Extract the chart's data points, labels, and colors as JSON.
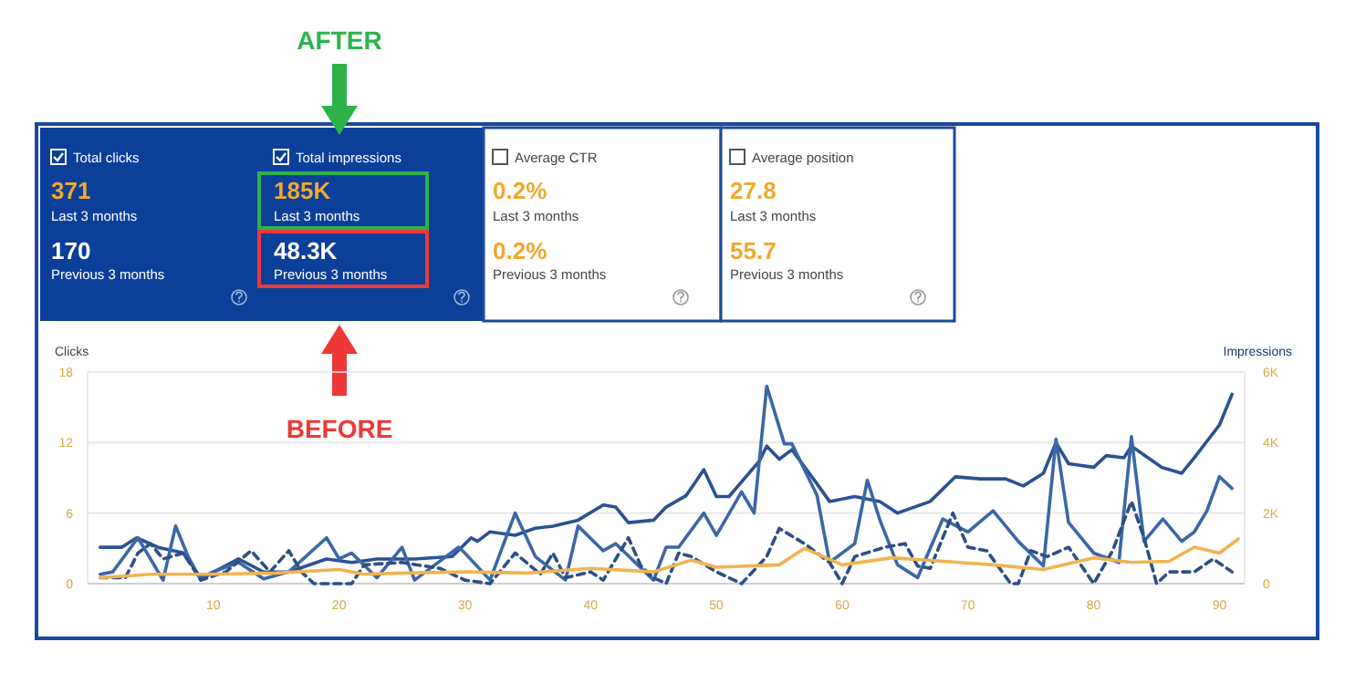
{
  "chart_data": [
    {
      "type": "other",
      "annotations": [
        "Total clicks",
        "371",
        "Last 3 months",
        "170",
        "Previous 3 months",
        "Total impressions",
        "185K",
        "Last 3 months",
        "48.3K",
        "Previous 3 months",
        "Average CTR",
        "0.2%",
        "Last 3 months",
        "0.2%",
        "Previous 3 months",
        "Average position",
        "27.8",
        "Last 3 months",
        "55.7",
        "Previous 3 months",
        "AFTER",
        "BEFORE"
      ]
    },
    {
      "type": "line",
      "ylabel": "Clicks",
      "y2label": "Impressions",
      "xlim": [
        0,
        92
      ],
      "xticks": [
        10,
        20,
        30,
        40,
        50,
        60,
        70,
        80,
        90
      ],
      "ylim": [
        0,
        18
      ],
      "yticks": [
        0,
        6,
        12,
        18
      ],
      "y2lim": [
        0,
        6000
      ],
      "y2ticks": [
        {
          "value": 0,
          "label": "0"
        },
        {
          "value": 2000,
          "label": "2K"
        },
        {
          "value": 4000,
          "label": "4K"
        },
        {
          "value": 6000,
          "label": "6K"
        }
      ],
      "grid": "y",
      "marker": "none",
      "series": [
        {
          "color": "#2b5192",
          "axis": "y2",
          "x": [
            1,
            2.7,
            3.9,
            5.6,
            7.6,
            9,
            10,
            12,
            14,
            16,
            19,
            21,
            23,
            26,
            29,
            30.5,
            31,
            32,
            34,
            35.6,
            37,
            39,
            41,
            42,
            43,
            45,
            46,
            47.6,
            49,
            50,
            51,
            53.4,
            54,
            55,
            56,
            58,
            59,
            61,
            63,
            64.4,
            67,
            69,
            71,
            73,
            74.4,
            76,
            77,
            78,
            80,
            81,
            82.4,
            83,
            85.4,
            87,
            88,
            90,
            91
          ],
          "values": [
            1030,
            1030,
            1300,
            1030,
            870,
            170,
            330,
            700,
            330,
            330,
            700,
            600,
            700,
            700,
            770,
            1300,
            1200,
            1470,
            1370,
            1570,
            1630,
            1800,
            2230,
            2170,
            1730,
            1800,
            2170,
            2500,
            3230,
            2470,
            2470,
            3470,
            3900,
            3530,
            3800,
            2830,
            2330,
            2470,
            2330,
            2000,
            2330,
            3030,
            2970,
            2970,
            2770,
            3130,
            4000,
            3400,
            3300,
            3630,
            3570,
            3900,
            3300,
            3130,
            3570,
            4500,
            5370
          ]
        },
        {
          "color": "#3b67a6",
          "x": [
            1,
            2,
            4,
            6,
            7,
            8,
            9,
            10,
            12,
            14,
            16,
            19,
            20,
            21,
            23,
            25,
            26,
            27.5,
            29.5,
            30,
            32,
            34,
            35.6,
            38,
            39,
            41,
            42,
            45,
            46,
            47,
            49,
            50,
            52,
            53,
            54,
            55.4,
            56,
            58,
            59,
            61,
            62,
            63,
            64.4,
            66,
            68,
            70,
            72,
            74,
            76,
            77,
            78,
            80,
            82,
            83,
            84,
            85.5,
            87,
            88,
            89,
            90,
            91
          ],
          "values": [
            0.8,
            1.0,
            3.9,
            0.3,
            4.9,
            2.3,
            0.3,
            1.0,
            1.8,
            0.4,
            1.0,
            3.9,
            2.1,
            2.6,
            0.5,
            3.1,
            0.3,
            1.5,
            3.1,
            2.6,
            0.3,
            6.0,
            2.3,
            0.3,
            4.9,
            2.8,
            3.4,
            0.3,
            3.1,
            3.1,
            6.0,
            4.1,
            7.8,
            6.0,
            16.8,
            11.9,
            11.9,
            7.5,
            1.8,
            3.4,
            8.8,
            5.4,
            1.6,
            0.5,
            5.5,
            4.4,
            6.2,
            3.6,
            1.5,
            12.3,
            5.2,
            2.6,
            1.8,
            12.5,
            3.6,
            5.5,
            3.6,
            4.4,
            6.2,
            9.1,
            8.1
          ]
        },
        {
          "color": "#2d4f86",
          "line_style": "dashed",
          "x": [
            1,
            3,
            4,
            5,
            6,
            7.6,
            9,
            11,
            13,
            14.5,
            16,
            17,
            18,
            21,
            22,
            25,
            28,
            30,
            32,
            34,
            36,
            37,
            38,
            40,
            41,
            43,
            44,
            45,
            46,
            47,
            48,
            50,
            52,
            54,
            55,
            57,
            59,
            60,
            61,
            63.4,
            65,
            66,
            67,
            68.8,
            70,
            71.5,
            73.4,
            74,
            75,
            76.3,
            78,
            80,
            81.5,
            83,
            84,
            85,
            86,
            88,
            89.5,
            91
          ],
          "values": [
            0.5,
            0.5,
            2.6,
            3.4,
            2.1,
            2.6,
            0.3,
            1.0,
            2.8,
            1.0,
            2.8,
            1.0,
            0,
            0,
            1.6,
            1.8,
            1.3,
            0.3,
            0,
            2.6,
            0.8,
            2.6,
            0.5,
            1.0,
            0.3,
            3.9,
            1.5,
            0.5,
            0,
            2.6,
            2.3,
            1.0,
            0,
            2.3,
            4.7,
            3.4,
            1.8,
            0,
            2.3,
            3.1,
            3.4,
            1.5,
            1.3,
            6.0,
            3.1,
            2.8,
            0,
            0,
            2.8,
            2.3,
            3.1,
            0,
            2.8,
            7.0,
            3.9,
            0,
            1.0,
            1.0,
            2.1,
            1.0
          ]
        },
        {
          "color": "#f0b450",
          "x": [
            1,
            5,
            10,
            15,
            20,
            22,
            25,
            30,
            35,
            40,
            45,
            48,
            50,
            55,
            57,
            60,
            64,
            68,
            72,
            76,
            80,
            83,
            86,
            88,
            90,
            91.5
          ],
          "values": [
            0.5,
            0.8,
            0.8,
            0.9,
            1.2,
            0.8,
            0.9,
            1.0,
            0.9,
            1.3,
            1.0,
            2.0,
            1.4,
            1.6,
            3.0,
            1.6,
            2.2,
            1.9,
            1.6,
            1.2,
            2.2,
            1.8,
            1.9,
            3.1,
            2.6,
            3.8
          ]
        }
      ]
    }
  ]
}
